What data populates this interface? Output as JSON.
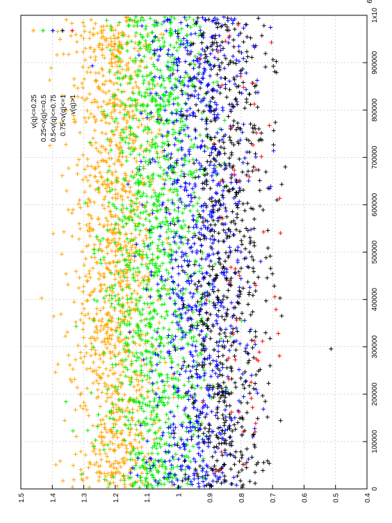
{
  "chart_data": {
    "type": "scatter",
    "rotated": "plot rotated 90 degrees counter-clockwise (x axis runs up the right edge, y axis along the bottom)",
    "x_range": [
      0,
      1000000
    ],
    "y_range": [
      0.4,
      1.5
    ],
    "x_ticks": [
      {
        "value": 0,
        "label": "0"
      },
      {
        "value": 100000,
        "label": "100000"
      },
      {
        "value": 200000,
        "label": "200000"
      },
      {
        "value": 300000,
        "label": "300000"
      },
      {
        "value": 400000,
        "label": "400000"
      },
      {
        "value": 500000,
        "label": "500000"
      },
      {
        "value": 600000,
        "label": "600000"
      },
      {
        "value": 700000,
        "label": "700000"
      },
      {
        "value": 800000,
        "label": "800000"
      },
      {
        "value": 900000,
        "label": "900000"
      },
      {
        "value": 1000000,
        "label": "1x10"
      }
    ],
    "x_exponent_label": "6",
    "y_ticks": [
      {
        "value": 0.4,
        "label": "0.4"
      },
      {
        "value": 0.5,
        "label": "0.5"
      },
      {
        "value": 0.6,
        "label": "0.6"
      },
      {
        "value": 0.7,
        "label": "0.7"
      },
      {
        "value": 0.8,
        "label": "0.8"
      },
      {
        "value": 0.9,
        "label": "0.9"
      },
      {
        "value": 1.0,
        "label": "1"
      },
      {
        "value": 1.1,
        "label": "1.1"
      },
      {
        "value": 1.2,
        "label": "1.2"
      },
      {
        "value": 1.3,
        "label": "1.3"
      },
      {
        "value": 1.4,
        "label": "1.4"
      },
      {
        "value": 1.5,
        "label": "1.5"
      }
    ],
    "grid": true,
    "legend_position": "top-right",
    "series": [
      {
        "name": "v(q)<=0.25",
        "color": "#ffa500",
        "y_center": 1.2,
        "y_spread": 0.07,
        "count": 1300
      },
      {
        "name": "0.25<v(q)<=0.5",
        "color": "#00ee00",
        "y_center": 1.07,
        "y_spread": 0.08,
        "count": 1300
      },
      {
        "name": "0.5<v(q)<=0.75",
        "color": "#0000ff",
        "y_center": 0.93,
        "y_spread": 0.08,
        "count": 900
      },
      {
        "name": "0.75<v(q)<=1",
        "color": "#000000",
        "y_center": 0.85,
        "y_spread": 0.07,
        "count": 700
      },
      {
        "name": "v(q)>1",
        "color": "#ff0000",
        "y_center": 0.8,
        "y_spread": 0.06,
        "count": 60
      }
    ]
  }
}
